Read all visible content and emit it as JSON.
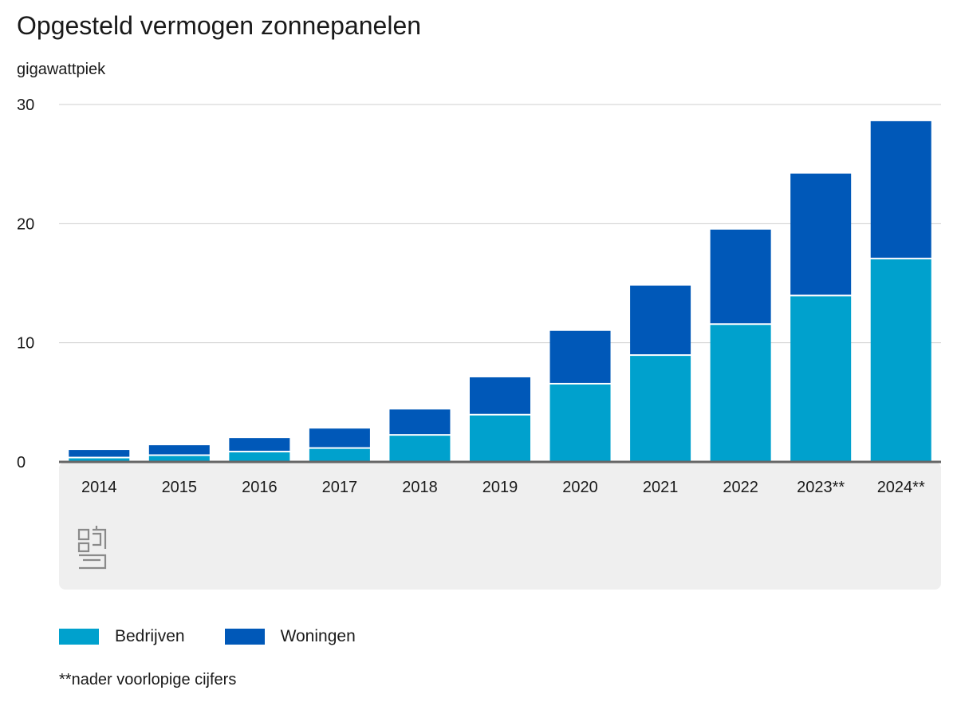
{
  "chart_data": {
    "type": "bar",
    "stacked": true,
    "title": "Opgesteld vermogen zonnepanelen",
    "ylabel": "gigawattpiek",
    "xlabel": "",
    "categories": [
      "2014",
      "2015",
      "2016",
      "2017",
      "2018",
      "2019",
      "2020",
      "2021",
      "2022",
      "2023**",
      "2024**"
    ],
    "series": [
      {
        "name": "Bedrijven",
        "color": "#00a1cd",
        "values": [
          0.3,
          0.5,
          0.8,
          1.1,
          2.2,
          3.9,
          6.5,
          8.9,
          11.5,
          13.9,
          17.0
        ]
      },
      {
        "name": "Woningen",
        "color": "#0058b8",
        "values": [
          0.7,
          0.9,
          1.2,
          1.7,
          2.2,
          3.2,
          4.5,
          5.9,
          8.0,
          10.3,
          11.6
        ]
      }
    ],
    "ylim": [
      0,
      30
    ],
    "yticks": [
      "0",
      "10",
      "20",
      "30"
    ],
    "grid": true,
    "legend": "bottom-left"
  },
  "footnote": "**nader voorlopige cijfers",
  "logo": "cbs-logo"
}
